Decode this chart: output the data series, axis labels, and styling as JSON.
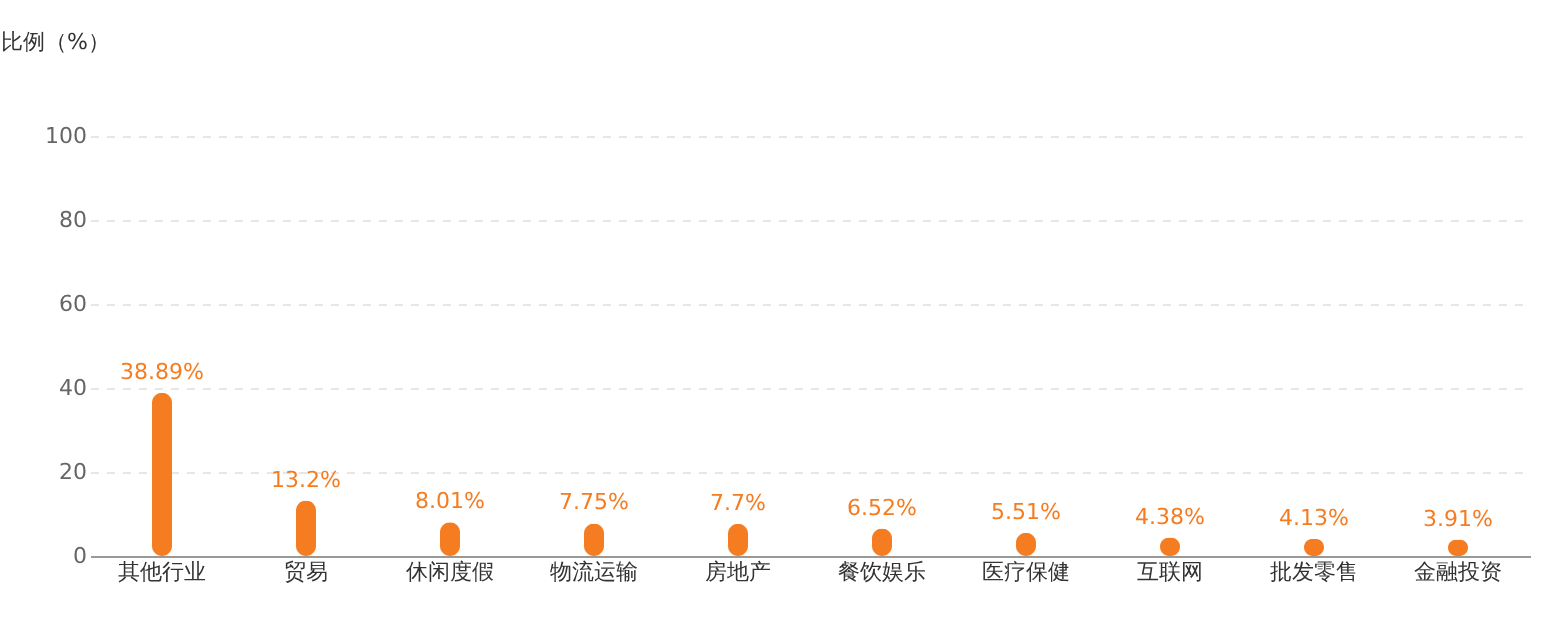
{
  "chart_data": {
    "type": "bar",
    "ylabel": "比例（%）",
    "categories": [
      "其他行业",
      "贸易",
      "休闲度假",
      "物流运输",
      "房地产",
      "餐饮娱乐",
      "医疗保健",
      "互联网",
      "批发零售",
      "金融投资"
    ],
    "values": [
      38.89,
      13.2,
      8.01,
      7.75,
      7.7,
      6.52,
      5.51,
      4.38,
      4.13,
      3.91
    ],
    "color": "#f57c20",
    "ylim": [
      0,
      100
    ],
    "yticks": [
      0,
      20,
      40,
      60,
      80,
      100
    ],
    "grid": "y",
    "value_labels": [
      "38.89%",
      "13.2%",
      "8.01%",
      "7.75%",
      "7.7%",
      "6.52%",
      "5.51%",
      "4.38%",
      "4.13%",
      "3.91%"
    ]
  }
}
